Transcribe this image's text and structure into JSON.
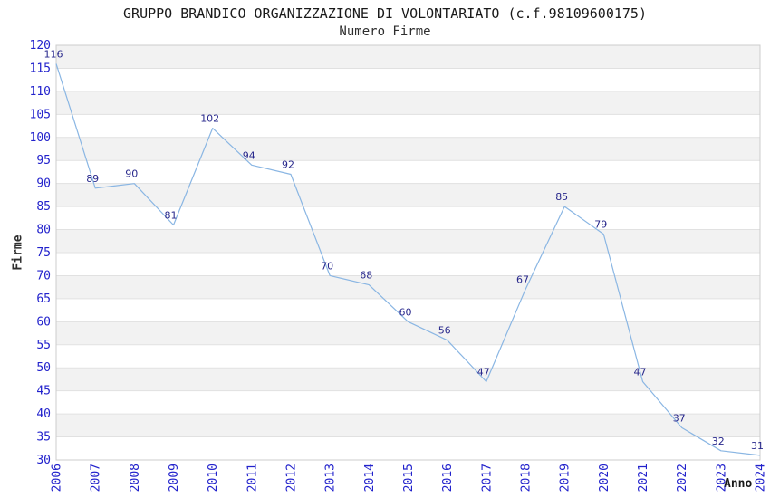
{
  "chart_data": {
    "type": "line",
    "title": "GRUPPO BRANDICO ORGANIZZAZIONE DI VOLONTARIATO (c.f.98109600175)",
    "subtitle": "Numero Firme",
    "xlabel": "Anno",
    "ylabel": "Firme",
    "x": [
      2006,
      2007,
      2008,
      2009,
      2010,
      2011,
      2012,
      2013,
      2014,
      2015,
      2016,
      2017,
      2018,
      2019,
      2020,
      2021,
      2022,
      2023,
      2024
    ],
    "series": [
      {
        "name": "Numero Firme",
        "values": [
          116,
          89,
          90,
          81,
          102,
          94,
          92,
          70,
          68,
          60,
          56,
          47,
          67,
          85,
          79,
          47,
          37,
          32,
          31
        ]
      }
    ],
    "ylim": [
      30,
      120
    ],
    "ytick_step": 5,
    "grid": "horizontal-bands",
    "legend": "none",
    "point_labels": true,
    "colors": {
      "line": "#8ab6e3",
      "tick_label": "#2222cc",
      "data_label": "#28288c",
      "band_fill": "#f2f2f2",
      "gridline": "#e1e1e1",
      "border": "#cccccc",
      "title": "#1a1a1a",
      "axis_label": "#2e2e2e",
      "background": "#ffffff"
    }
  }
}
